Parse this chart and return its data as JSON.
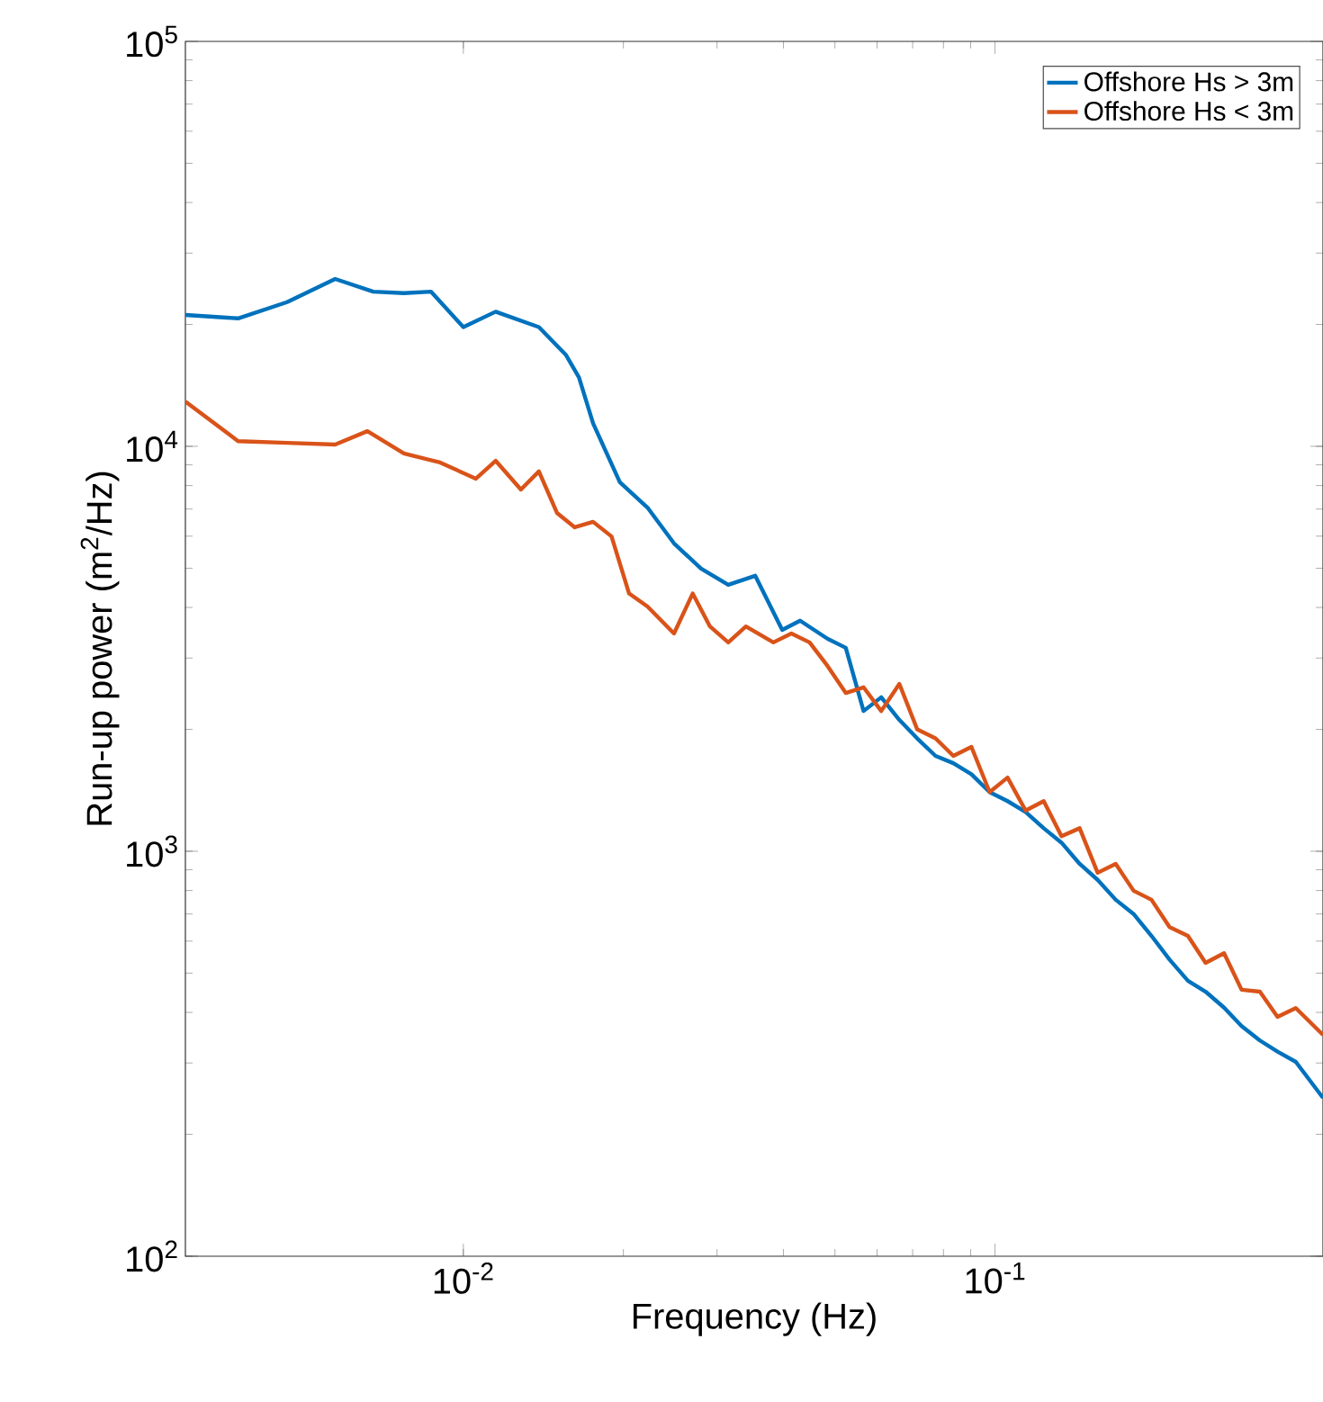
{
  "chart_data": {
    "type": "line",
    "xlabel": "Frequency (Hz)",
    "ylabel": "Run-up power (m$^{2}$/Hz)",
    "log": "xy",
    "grid": false,
    "legend": "top right",
    "marker": "none",
    "line_style": "solid",
    "xlim": [
      0.003,
      0.414
    ],
    "ylim": [
      100,
      100000
    ],
    "xticks": [
      {
        "value": 0.01,
        "label": "10$^{-2}$"
      },
      {
        "value": 0.1,
        "label": "10$^{-1}$"
      }
    ],
    "yticks": [
      {
        "value": 100,
        "label": "10$^{2}$"
      },
      {
        "value": 1000,
        "label": "10$^{3}$"
      },
      {
        "value": 10000,
        "label": "10$^{4}$"
      },
      {
        "value": 100000,
        "label": "10$^{5}$"
      }
    ],
    "series": [
      {
        "name": "Offshore Hs > 3m",
        "color": "#0072bd",
        "x": [
          0.003,
          0.00377,
          0.00466,
          0.00574,
          0.00677,
          0.00773,
          0.00869,
          0.01,
          0.0115,
          0.01387,
          0.0156,
          0.0165,
          0.01754,
          0.0197,
          0.0222,
          0.0249,
          0.028,
          0.0315,
          0.0354,
          0.0398,
          0.043,
          0.0484,
          0.0524,
          0.0566,
          0.0611,
          0.0661,
          0.0714,
          0.0773,
          0.0835,
          0.0903,
          0.0977,
          0.1056,
          0.1142,
          0.1235,
          0.1334,
          0.1443,
          0.156,
          0.1687,
          0.1823,
          0.197,
          0.213,
          0.2306,
          0.249,
          0.2697,
          0.291,
          0.315,
          0.34,
          0.368,
          0.414
        ],
        "values": [
          21100,
          20700,
          22700,
          25900,
          24100,
          23900,
          24100,
          19700,
          21500,
          19700,
          16800,
          14800,
          11400,
          8150,
          7060,
          5760,
          4990,
          4550,
          4790,
          3520,
          3710,
          3350,
          3180,
          2220,
          2400,
          2110,
          1900,
          1720,
          1650,
          1550,
          1400,
          1330,
          1250,
          1140,
          1050,
          931,
          850,
          759,
          700,
          618,
          540,
          479,
          450,
          411,
          370,
          341,
          320,
          302,
          246
        ]
      },
      {
        "name": "Offshore Hs < 3m",
        "color": "#d95319",
        "x": [
          0.003,
          0.00377,
          0.00466,
          0.00574,
          0.0066,
          0.00773,
          0.00904,
          0.01056,
          0.0115,
          0.01283,
          0.01387,
          0.015,
          0.0162,
          0.01754,
          0.019,
          0.0205,
          0.0222,
          0.0249,
          0.027,
          0.0291,
          0.0315,
          0.034,
          0.0383,
          0.0414,
          0.0448,
          0.0484,
          0.0524,
          0.0566,
          0.0611,
          0.0661,
          0.0714,
          0.0773,
          0.0835,
          0.0903,
          0.0977,
          0.1056,
          0.1142,
          0.1235,
          0.1334,
          0.1443,
          0.156,
          0.1687,
          0.1823,
          0.197,
          0.213,
          0.2306,
          0.249,
          0.2697,
          0.291,
          0.315,
          0.34,
          0.368,
          0.414
        ],
        "values": [
          12900,
          10300,
          10200,
          10100,
          10900,
          9600,
          9120,
          8320,
          9210,
          7820,
          8670,
          6850,
          6310,
          6510,
          5990,
          4330,
          4020,
          3450,
          4330,
          3590,
          3280,
          3590,
          3280,
          3450,
          3280,
          2870,
          2460,
          2540,
          2220,
          2590,
          2000,
          1900,
          1720,
          1810,
          1400,
          1520,
          1260,
          1330,
          1090,
          1140,
          885,
          931,
          799,
          759,
          650,
          618,
          530,
          560,
          455,
          450,
          390,
          410,
          352
        ]
      }
    ]
  }
}
